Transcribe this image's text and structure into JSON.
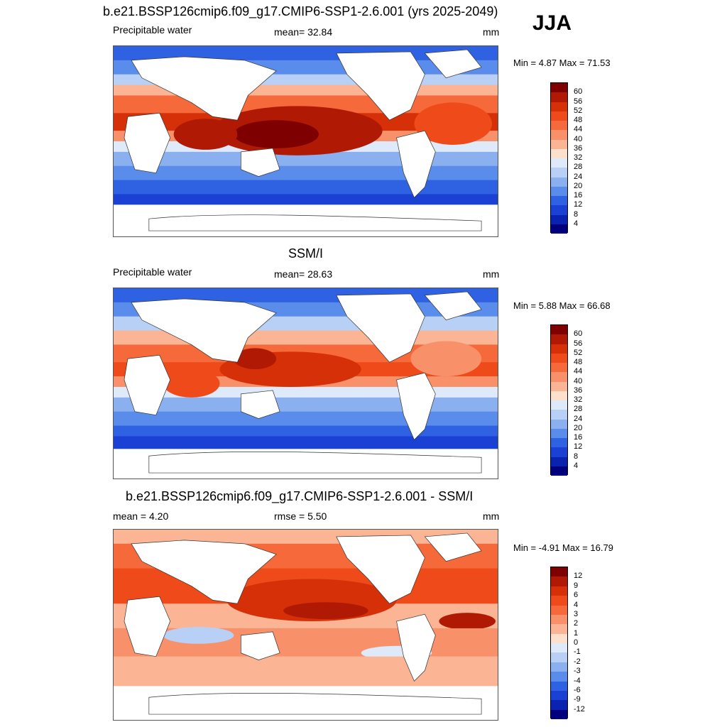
{
  "season": "JJA",
  "panels": [
    {
      "title": "b.e21.BSSP126cmip6.f09_g17.CMIP6-SSP1-2.6.001 (yrs 2025-2049)",
      "left_label": "Precipitable water",
      "center_label": "mean=  32.84",
      "units": "mm",
      "minmax": "Min =   4.87 Max =  71.53",
      "colorbar": {
        "ticks": [
          "60",
          "56",
          "52",
          "48",
          "44",
          "40",
          "36",
          "32",
          "28",
          "24",
          "20",
          "16",
          "12",
          "8",
          "4"
        ],
        "colors": [
          "#7f0000",
          "#b01a05",
          "#d63008",
          "#ee4a1a",
          "#f5693a",
          "#f8906a",
          "#fbb494",
          "#fde0cc",
          "#deeaf9",
          "#b8d0f5",
          "#8ab0f0",
          "#5a8cec",
          "#2f62e3",
          "#1a40d4",
          "#0a22b0",
          "#00007f"
        ]
      }
    },
    {
      "title": "SSM/I",
      "left_label": "Precipitable water",
      "center_label": "mean=  28.63",
      "units": "mm",
      "minmax": "Min =   5.88 Max =  66.68",
      "colorbar": {
        "ticks": [
          "60",
          "56",
          "52",
          "48",
          "44",
          "40",
          "36",
          "32",
          "28",
          "24",
          "20",
          "16",
          "12",
          "8",
          "4"
        ],
        "colors": [
          "#7f0000",
          "#b01a05",
          "#d63008",
          "#ee4a1a",
          "#f5693a",
          "#f8906a",
          "#fbb494",
          "#fde0cc",
          "#deeaf9",
          "#b8d0f5",
          "#8ab0f0",
          "#5a8cec",
          "#2f62e3",
          "#1a40d4",
          "#0a22b0",
          "#00007f"
        ]
      }
    },
    {
      "title": "b.e21.BSSP126cmip6.f09_g17.CMIP6-SSP1-2.6.001 - SSM/I",
      "left_label": "mean =   4.20",
      "center_label": "rmse =   5.50",
      "units": "mm",
      "minmax": "Min =  -4.91 Max =  16.79",
      "colorbar": {
        "ticks": [
          "12",
          "9",
          "6",
          "4",
          "3",
          "2",
          "1",
          "0",
          "-1",
          "-2",
          "-3",
          "-4",
          "-6",
          "-9",
          "-12"
        ],
        "colors": [
          "#7f0000",
          "#b01a05",
          "#d63008",
          "#ee4a1a",
          "#f5693a",
          "#f8906a",
          "#fbb494",
          "#fde0cc",
          "#deeaf9",
          "#b8d0f5",
          "#8ab0f0",
          "#5a8cec",
          "#2f62e3",
          "#1a40d4",
          "#0a22b0",
          "#00007f"
        ]
      }
    }
  ]
}
